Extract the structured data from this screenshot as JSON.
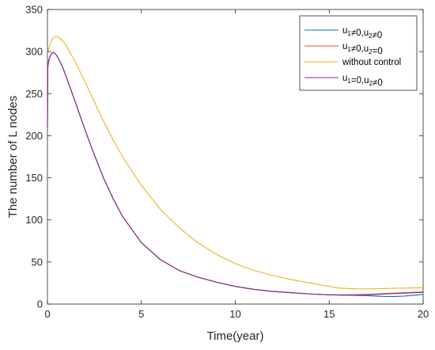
{
  "chart_data": {
    "type": "line",
    "title": "",
    "xlabel": "Time(year)",
    "ylabel": "The number of L nodes",
    "xlim": [
      0,
      20
    ],
    "ylim": [
      0,
      350
    ],
    "xticks": [
      0,
      5,
      10,
      15,
      20
    ],
    "yticks": [
      0,
      50,
      100,
      150,
      200,
      250,
      300,
      350
    ],
    "grid": false,
    "legend_position": "top-right",
    "series": [
      {
        "name": "u1≠0,u2≠0",
        "legend": {
          "p1": "u",
          "s1": "1",
          "p2": "≠0,u",
          "s2": "2",
          "p3": "≠0"
        },
        "color": "#0072BD",
        "x": [
          0,
          0.02,
          0.05,
          0.1,
          0.2,
          0.3,
          0.4,
          0.5,
          0.6,
          0.8,
          1,
          1.5,
          2,
          2.5,
          3,
          3.5,
          4,
          5,
          6,
          7,
          8,
          9,
          10,
          11,
          12,
          13,
          14,
          15,
          16,
          17,
          17.5,
          18,
          18.5,
          19,
          19.5,
          20
        ],
        "y": [
          210,
          281,
          287,
          292,
          297,
          299,
          298,
          295,
          291,
          282,
          270,
          239,
          207,
          177,
          149,
          125,
          104,
          73,
          53,
          40,
          32,
          26,
          21,
          17.5,
          15,
          13.5,
          12,
          11,
          10.5,
          10,
          9.5,
          9,
          9,
          9.5,
          10.5,
          11.5
        ]
      },
      {
        "name": "u1≠0,u2=0",
        "legend": {
          "p1": "u",
          "s1": "1",
          "p2": "≠0,u",
          "s2": "2",
          "p3": "=0"
        },
        "color": "#D95319",
        "x": [
          0,
          0.02,
          0.05,
          0.1,
          0.2,
          0.3,
          0.4,
          0.5,
          0.6,
          0.8,
          1,
          1.5,
          2,
          2.5,
          3,
          3.5,
          4,
          5,
          6,
          7,
          8,
          9,
          10,
          11,
          12,
          13,
          14,
          15,
          16,
          17,
          17.5,
          18,
          18.5,
          19,
          19.5,
          20
        ],
        "y": [
          210,
          281,
          287,
          292,
          297,
          299,
          298,
          295,
          291,
          282,
          270,
          239,
          207,
          177,
          149,
          125,
          104,
          73,
          53,
          40,
          32,
          26,
          21,
          17.5,
          15,
          13.5,
          12,
          11,
          11,
          11.5,
          12,
          12.5,
          13,
          13.5,
          14,
          14.5
        ]
      },
      {
        "name": "without control",
        "legend": {
          "p1": "without control",
          "s1": "",
          "p2": "",
          "s2": "",
          "p3": ""
        },
        "color": "#EDB120",
        "x": [
          0,
          0.02,
          0.05,
          0.1,
          0.2,
          0.3,
          0.4,
          0.5,
          0.6,
          0.8,
          1,
          1.5,
          2,
          2.5,
          3,
          3.5,
          4,
          5,
          6,
          7,
          8,
          9,
          10,
          11,
          12,
          13,
          14,
          15,
          15.5,
          16,
          16.5,
          17,
          18,
          19,
          20
        ],
        "y": [
          300,
          300,
          302,
          306,
          312,
          316,
          318,
          318,
          317,
          313,
          307,
          287,
          264,
          240,
          217,
          195,
          175,
          141,
          113,
          91,
          73,
          59,
          48,
          40,
          34,
          29,
          25,
          21,
          19,
          18.5,
          18,
          18,
          18.5,
          19,
          19.5
        ]
      },
      {
        "name": "u1=0,u2≠0",
        "legend": {
          "p1": "u",
          "s1": "1",
          "p2": "=0,u",
          "s2": "2",
          "p3": "≠0"
        },
        "color": "#7E2F8E",
        "x": [
          0,
          0.02,
          0.05,
          0.1,
          0.2,
          0.3,
          0.4,
          0.5,
          0.6,
          0.8,
          1,
          1.5,
          2,
          2.5,
          3,
          3.5,
          4,
          5,
          6,
          7,
          8,
          9,
          10,
          11,
          12,
          13,
          14,
          15,
          16,
          17,
          17.5,
          18,
          18.5,
          19,
          19.5,
          20
        ],
        "y": [
          210,
          281,
          287,
          292,
          297,
          299,
          298,
          295,
          291,
          282,
          270,
          239,
          207,
          177,
          149,
          125,
          104,
          73,
          53,
          40,
          32,
          26,
          21,
          17.5,
          15,
          13.5,
          12,
          11,
          10.5,
          11,
          11.5,
          12,
          12.5,
          13,
          13.5,
          14
        ]
      }
    ]
  }
}
